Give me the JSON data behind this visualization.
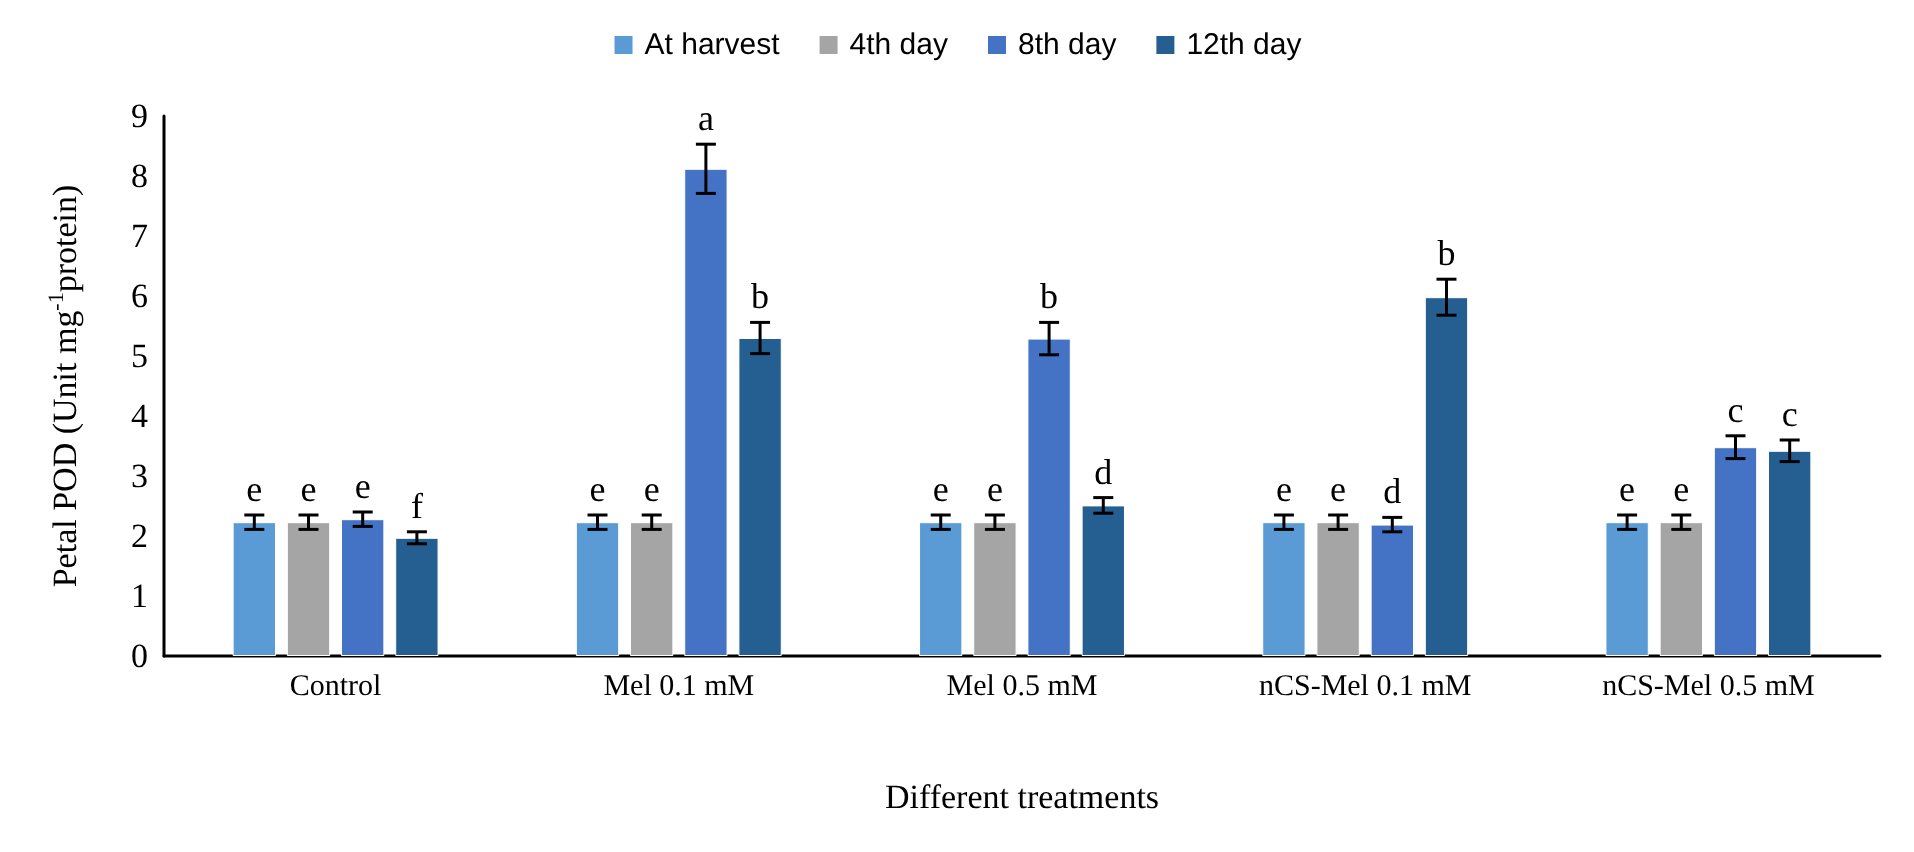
{
  "chart_data": {
    "type": "bar",
    "xlabel": "Different treatments",
    "ylabel": "Petal POD (Unit mg$^{-1}$protein)",
    "categories": [
      "Control",
      "Mel 0.1 mM",
      "Mel 0.5 mM",
      "nCS-Mel 0.1 mM",
      "nCS-Mel 0.5 mM"
    ],
    "series": [
      {
        "name": "At harvest",
        "color": "#5b9bd5",
        "values": [
          2.23,
          2.23,
          2.23,
          2.23,
          2.23
        ],
        "errors": [
          0.12,
          0.12,
          0.12,
          0.12,
          0.12
        ],
        "value_labels": [
          "e",
          "e",
          "e",
          "e",
          "e"
        ]
      },
      {
        "name": "4th day",
        "color": "#a5a5a5",
        "values": [
          2.23,
          2.23,
          2.23,
          2.23,
          2.23
        ],
        "errors": [
          0.12,
          0.12,
          0.12,
          0.12,
          0.12
        ],
        "value_labels": [
          "e",
          "e",
          "e",
          "e",
          "e"
        ]
      },
      {
        "name": "8th day",
        "color": "#4472c4",
        "values": [
          2.28,
          8.12,
          5.29,
          2.19,
          3.48
        ],
        "errors": [
          0.12,
          0.41,
          0.27,
          0.12,
          0.19
        ],
        "value_labels": [
          "e",
          "a",
          "b",
          "d",
          "c"
        ]
      },
      {
        "name": "12th day",
        "color": "#255e91",
        "values": [
          1.97,
          5.3,
          2.51,
          5.98,
          3.42
        ],
        "errors": [
          0.1,
          0.26,
          0.13,
          0.3,
          0.18
        ],
        "value_labels": [
          "f",
          "b",
          "d",
          "b",
          "c"
        ]
      }
    ],
    "ylim": [
      0,
      9
    ],
    "yticks": [
      0,
      1,
      2,
      3,
      4,
      5,
      6,
      7,
      8,
      9
    ],
    "grid": false,
    "legend": "top"
  }
}
